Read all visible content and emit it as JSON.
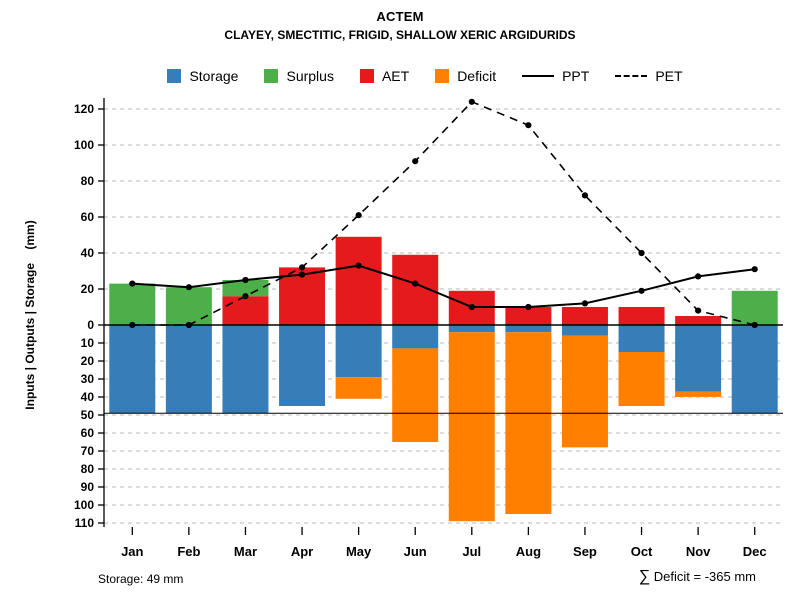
{
  "header": {
    "title": "ACTEM",
    "subtitle": "CLAYEY, SMECTITIC, FRIGID, SHALLOW XERIC ARGIDURIDS"
  },
  "footer": {
    "storage_note": "Storage: 49 mm",
    "deficit_sigma": "∑",
    "deficit_note": " Deficit = -365 mm"
  },
  "chart_data": {
    "type": "bar",
    "title": "ACTEM",
    "subtitle": "CLAYEY, SMECTITIC, FRIGID, SHALLOW XERIC ARGIDURIDS",
    "ylabel": "Inputs | Outputs | Storage    (mm)",
    "categories": [
      "Jan",
      "Feb",
      "Mar",
      "Apr",
      "May",
      "Jun",
      "Jul",
      "Aug",
      "Sep",
      "Oct",
      "Nov",
      "Dec"
    ],
    "axis": {
      "upper_ticks": [
        0,
        20,
        40,
        60,
        80,
        100,
        120
      ],
      "lower_ticks": [
        10,
        20,
        30,
        40,
        50,
        60,
        70,
        80,
        90,
        100,
        110
      ],
      "upper_limit": 130,
      "lower_limit": 112,
      "grid": "dashed"
    },
    "reference_storage_line_mm": 49,
    "storage_capacity_mm": 49,
    "total_deficit_mm": -365,
    "legend": [
      {
        "label": "Storage",
        "swatch": "square",
        "color": "#377eb8"
      },
      {
        "label": "Surplus",
        "swatch": "square",
        "color": "#4daf4a"
      },
      {
        "label": "AET",
        "swatch": "square",
        "color": "#e41a1c"
      },
      {
        "label": "Deficit",
        "swatch": "square",
        "color": "#ff7f00"
      },
      {
        "label": "PPT",
        "swatch": "solid-line",
        "color": "#000000"
      },
      {
        "label": "PET",
        "swatch": "dashed-line",
        "color": "#000000"
      }
    ],
    "series": [
      {
        "name": "Storage",
        "role": "bar_below",
        "color": "#377eb8",
        "values": [
          49,
          49,
          49,
          45,
          29,
          13,
          4,
          4,
          6,
          15,
          37,
          49
        ]
      },
      {
        "name": "Deficit",
        "role": "bar_below_stack",
        "color": "#ff7f00",
        "values": [
          0,
          0,
          0,
          0,
          12,
          52,
          105,
          101,
          62,
          30,
          3,
          0
        ]
      },
      {
        "name": "AET",
        "role": "bar_above",
        "color": "#e41a1c",
        "values": [
          0,
          0,
          16,
          32,
          49,
          39,
          19,
          10,
          10,
          10,
          5,
          0
        ]
      },
      {
        "name": "Surplus",
        "role": "bar_above_stack",
        "color": "#4daf4a",
        "values": [
          23,
          21,
          9,
          0,
          0,
          0,
          0,
          0,
          0,
          0,
          0,
          19
        ]
      },
      {
        "name": "PPT",
        "role": "line_solid",
        "color": "#000000",
        "values": [
          23,
          21,
          25,
          28,
          33,
          23,
          10,
          10,
          12,
          19,
          27,
          31
        ]
      },
      {
        "name": "PET",
        "role": "line_dashed",
        "color": "#000000",
        "values": [
          0,
          0,
          16,
          32,
          61,
          91,
          124,
          111,
          72,
          40,
          8,
          0
        ]
      }
    ]
  }
}
